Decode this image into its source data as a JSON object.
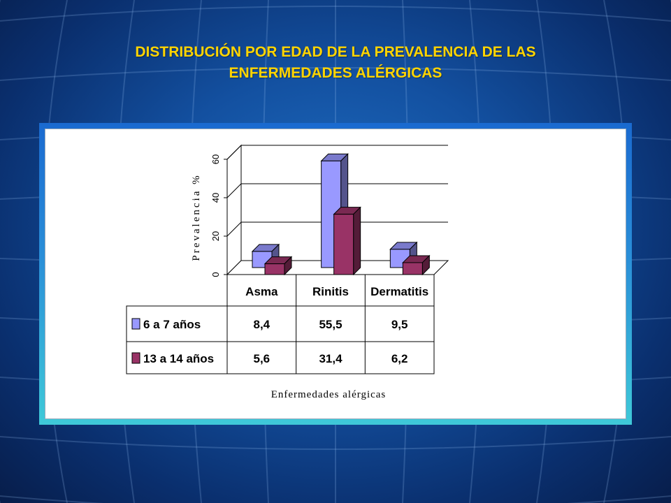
{
  "slide": {
    "title_line1": "DISTRIBUCIÓN POR EDAD DE LA PREVALENCIA DE LAS",
    "title_line2": "ENFERMEDADES ALÉRGICAS"
  },
  "colors": {
    "title": "#ffd400",
    "series_1_face": "#9999ff",
    "series_2_face": "#993366"
  },
  "chart_data": {
    "type": "bar",
    "three_d": true,
    "categories": [
      "Asma",
      "Rinitis",
      "Dermatitis"
    ],
    "series": [
      {
        "name": "6 a 7 años",
        "values": [
          8.4,
          55.5,
          9.5
        ],
        "labels": [
          "8,4",
          "55,5",
          "9,5"
        ]
      },
      {
        "name": "13 a 14 años",
        "values": [
          5.6,
          31.4,
          6.2
        ],
        "labels": [
          "5,6",
          "31,4",
          "6,2"
        ]
      }
    ],
    "ylabel": "Prevalencia %",
    "xlabel": "Enfermedades alérgicas",
    "ylim": [
      0,
      60
    ],
    "yticks": [
      0,
      20,
      40,
      60
    ],
    "grid": true,
    "legend": "data-table",
    "data_table": true
  }
}
